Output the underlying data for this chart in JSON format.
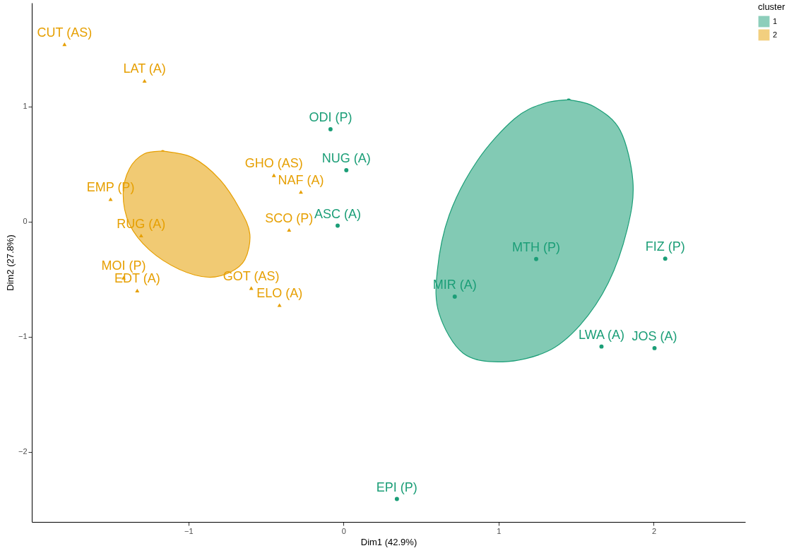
{
  "chart_data": {
    "type": "scatter",
    "xlabel": "Dim1 (42.9%)",
    "ylabel": "Dim2 (27.8%)",
    "legend_title": "cluster",
    "legend": "right",
    "grid": false,
    "xlim": [
      -2.01,
      2.59
    ],
    "ylim": [
      -2.61,
      1.9
    ],
    "xticks": [
      {
        "value": -1,
        "label": "−1"
      },
      0,
      1,
      2
    ],
    "yticks": [
      {
        "value": -2,
        "label": "−2"
      },
      {
        "value": -1,
        "label": "−1"
      },
      0,
      1
    ],
    "series": [
      {
        "type": "area",
        "color": "#e69f00",
        "x": [
          -1.162,
          -0.976,
          -0.799,
          -0.667,
          -0.604,
          -0.636,
          -0.731,
          -0.872,
          -1.058,
          -1.253,
          -1.38,
          -1.421,
          -1.38,
          -1.285,
          -1.162
        ],
        "values": [
          0.612,
          0.557,
          0.367,
          0.104,
          -0.11,
          -0.331,
          -0.441,
          -0.484,
          -0.416,
          -0.245,
          -0.024,
          0.239,
          0.459,
          0.588,
          0.612
        ]
      },
      {
        "type": "area",
        "color": "#1b9e77",
        "x": [
          1.453,
          1.616,
          1.784,
          1.866,
          1.829,
          1.707,
          1.525,
          1.316,
          1.026,
          0.772,
          0.617,
          0.604,
          0.681,
          0.862,
          1.103,
          1.298,
          1.453
        ],
        "values": [
          1.059,
          0.998,
          0.79,
          0.343,
          -0.067,
          -0.533,
          -0.9,
          -1.127,
          -1.219,
          -1.145,
          -0.802,
          -0.435,
          0.055,
          0.527,
          0.894,
          1.029,
          1.059
        ]
      },
      {
        "name": "1",
        "color": "#1b9e77",
        "marker": "circle",
        "x": [
          -0.084,
          0.018,
          -0.038,
          0.717,
          1.242,
          2.074,
          1.663,
          2.005,
          0.344
        ],
        "values": [
          0.802,
          0.446,
          -0.036,
          -0.653,
          -0.326,
          -0.323,
          -1.086,
          -1.1,
          -2.411
        ],
        "value_labels": [
          "ODI (P)",
          "NUG (A)",
          "ASC (A)",
          "MIR (A)",
          "MTH (P)",
          "FIZ (P)",
          "LWA (A)",
          "JOS (A)",
          "EPI (P)"
        ]
      },
      {
        "name": "2",
        "color": "#e69f00",
        "marker": "triangle",
        "x": [
          -1.799,
          -1.283,
          -1.502,
          -1.305,
          -1.418,
          -1.33,
          -0.449,
          -0.275,
          -0.351,
          -0.595,
          -0.413
        ],
        "values": [
          1.54,
          1.222,
          0.194,
          -0.122,
          -0.488,
          -0.6,
          0.402,
          0.257,
          -0.073,
          -0.578,
          -0.726
        ],
        "value_labels": [
          "CUT (AS)",
          "LAT (A)",
          "EMP (P)",
          "RUG (A)",
          "MOI (P)",
          "EDT (A)",
          "GHO (AS)",
          "NAF (A)",
          "SCO (P)",
          "GOT (AS)",
          "ELO (A)"
        ]
      }
    ]
  }
}
